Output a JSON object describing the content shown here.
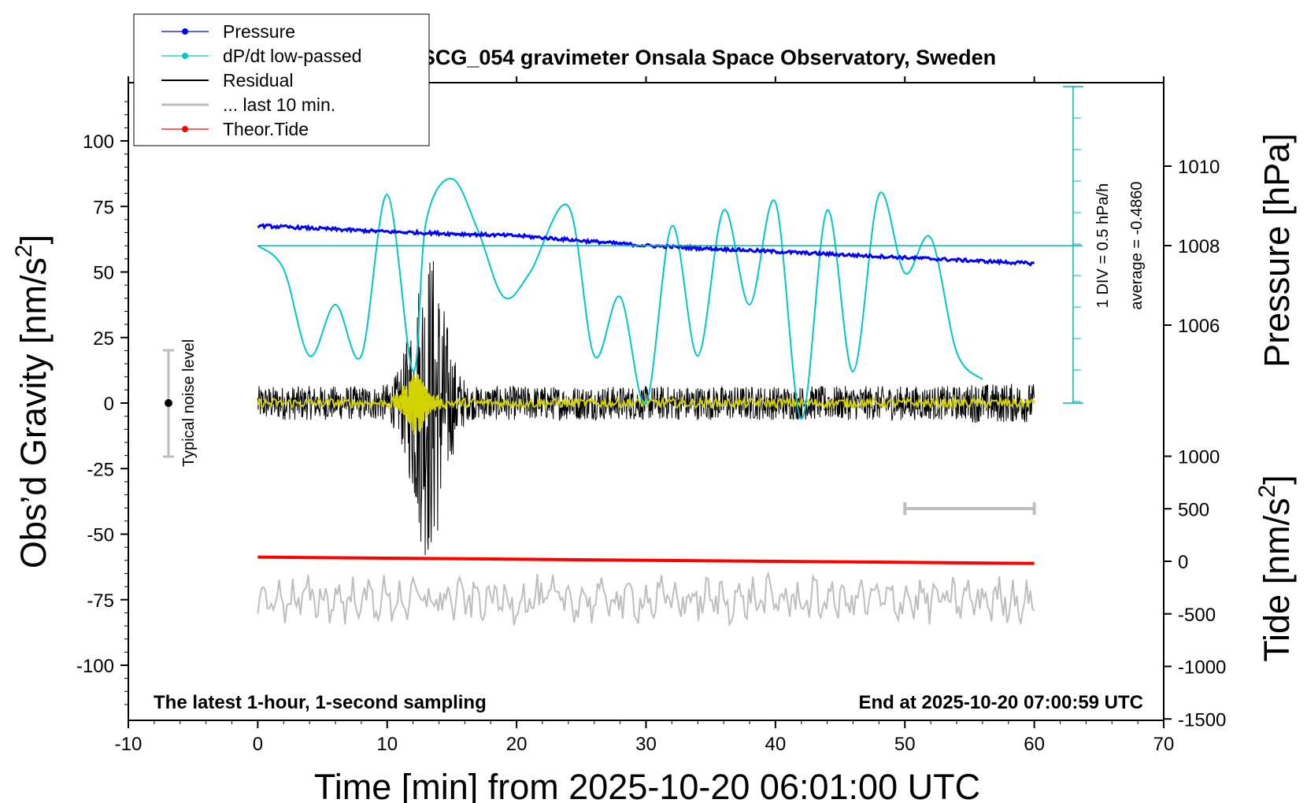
{
  "chart_data": {
    "type": "line",
    "title": "SCG_054 gravimeter Onsala Space Observatory, Sweden",
    "xlabel": "Time [min] from 2025-10-20 06:01:00 UTC",
    "ylabel_left": "Obs’d Gravity [nm/s2]",
    "ylabel_left_main": "Obs’d Gravity [nm/s",
    "ylabel_left_sup": "2",
    "ylabel_left_end": "]",
    "ylabel_right_pressure": "Pressure [hPa]",
    "ylabel_right_tide": "Tide [nm/s2]",
    "ylabel_right_tide_main": "Tide [nm/s",
    "ylabel_right_tide_sup": "2",
    "ylabel_right_tide_end": "]",
    "xlim": [
      -10,
      70
    ],
    "ylim": [
      -120,
      120
    ],
    "x_ticks": [
      "-10",
      "0",
      "10",
      "20",
      "30",
      "40",
      "50",
      "60",
      "70"
    ],
    "y_ticks": [
      "100",
      "75",
      "50",
      "25",
      "0",
      "-25",
      "-50",
      "-75",
      "-100"
    ],
    "pressure_ticks": [
      "1010",
      "1008",
      "1006"
    ],
    "tide_ticks": [
      "1000",
      "500",
      "0",
      "-500",
      "-1000",
      "-1500"
    ],
    "bottom_left_note": "The latest 1-hour, 1-second sampling",
    "bottom_right_note": "End at 2025-10-20 07:00:59 UTC",
    "scale_bar_note_1": "1 DIV = 0.5 hPa/h",
    "scale_bar_note_2": "average = -0.4860",
    "noise_label": "Typical noise level",
    "legend": [
      {
        "name": "Pressure",
        "color": "#0000ff",
        "marker": true
      },
      {
        "name": "dP/dt low-passed",
        "color": "#00c8c8",
        "marker": true
      },
      {
        "name": "Residual",
        "color": "#000000",
        "marker": false
      },
      {
        "name": "... last 10 min.",
        "color": "#bebebe",
        "marker": false
      },
      {
        "name": "Theor.Tide",
        "color": "#ff0000",
        "marker": true
      }
    ],
    "series": [
      {
        "name": "Pressure",
        "unit": "hPa",
        "x": [
          0,
          10,
          20,
          30,
          40,
          50,
          60
        ],
        "values": [
          1008.5,
          1008.35,
          1008.25,
          1008.0,
          1007.85,
          1007.7,
          1007.55
        ]
      },
      {
        "name": "dP/dt low-passed",
        "unit": "hPa/h",
        "x": [
          0,
          2,
          4,
          6,
          8,
          10,
          12,
          13,
          15,
          17,
          19,
          21,
          24,
          26,
          28,
          30,
          32,
          34,
          36,
          38,
          40,
          42,
          44,
          46,
          48,
          50,
          52,
          54,
          56
        ],
        "values": [
          0,
          -0.3,
          -1.4,
          -0.75,
          -1.4,
          0.65,
          -1.6,
          0.3,
          0.85,
          0.2,
          -0.65,
          -0.35,
          0.5,
          -1.4,
          -0.65,
          -2.0,
          0.25,
          -1.4,
          0.45,
          -0.75,
          0.55,
          -2.2,
          0.45,
          -1.6,
          0.65,
          -0.35,
          0.1,
          -1.35,
          -1.7
        ]
      },
      {
        "name": "Theor.Tide",
        "unit": "nm/s2",
        "x": [
          0,
          60
        ],
        "values": [
          40,
          -20
        ]
      }
    ]
  }
}
